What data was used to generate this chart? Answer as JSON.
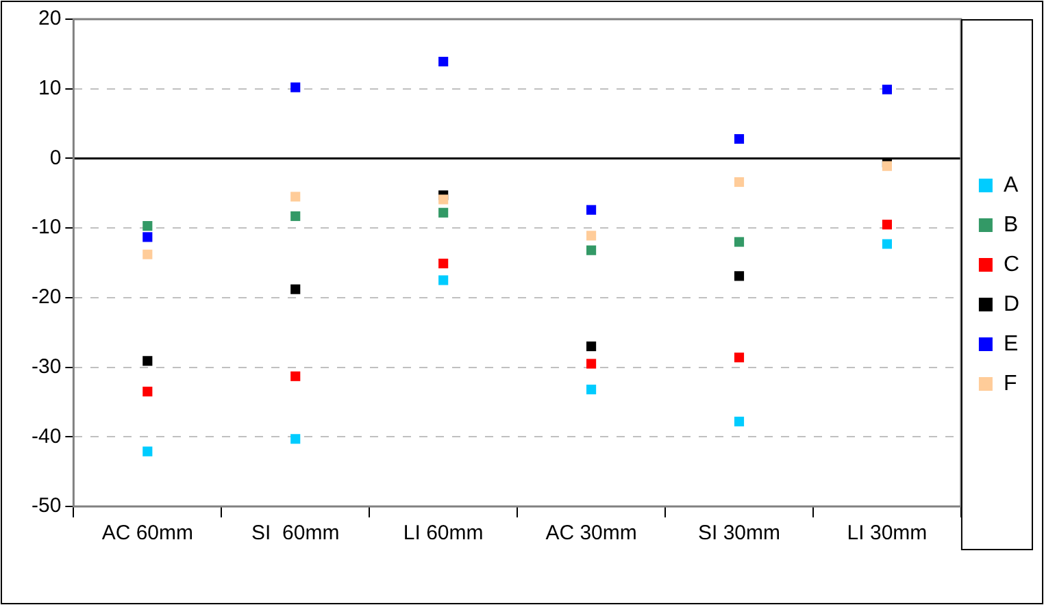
{
  "chart_data": {
    "type": "scatter",
    "categories": [
      "AC 60mm",
      "SI  60mm",
      "LI 60mm",
      "AC 30mm",
      "SI 30mm",
      "LI 30mm"
    ],
    "series": [
      {
        "name": "A",
        "color": "#00ccff",
        "values": [
          -42.1,
          -40.3,
          -17.5,
          -33.2,
          -37.8,
          -12.3
        ]
      },
      {
        "name": "B",
        "color": "#339966",
        "values": [
          -9.7,
          -8.3,
          -7.8,
          -13.2,
          -12.0,
          null
        ]
      },
      {
        "name": "C",
        "color": "#ff0000",
        "values": [
          -33.5,
          -31.3,
          -15.1,
          -29.5,
          -28.6,
          -9.5
        ]
      },
      {
        "name": "D",
        "color": "#000000",
        "values": [
          -29.1,
          -18.8,
          -5.3,
          -27.0,
          -16.9,
          -0.6
        ]
      },
      {
        "name": "E",
        "color": "#0000ff",
        "values": [
          -11.3,
          10.2,
          13.9,
          -7.4,
          2.8,
          9.9
        ]
      },
      {
        "name": "F",
        "color": "#ffcc99",
        "values": [
          -13.8,
          -5.5,
          -5.9,
          -11.1,
          -3.4,
          -1.1
        ]
      }
    ],
    "ylim": [
      -50,
      20
    ],
    "yticks": [
      -50,
      -40,
      -30,
      -20,
      -10,
      0,
      10,
      20
    ],
    "grid": "y",
    "legend": "right",
    "marker": "square",
    "ref_lines": [
      {
        "axis": "y",
        "value": 0,
        "color": "#000000"
      }
    ]
  }
}
